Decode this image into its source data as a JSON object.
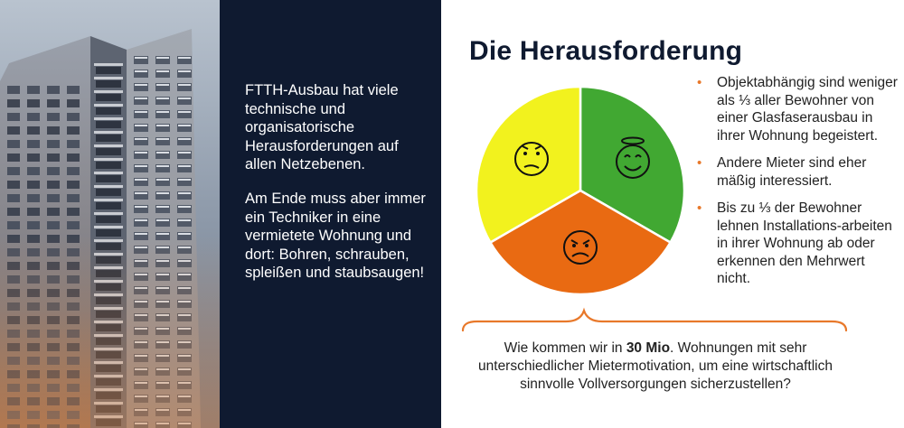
{
  "colors": {
    "navy": "#0f1a30",
    "yellow": "#f2f21e",
    "green": "#41a832",
    "orange": "#e96a12",
    "accent": "#e8782a"
  },
  "left_panel": {
    "paragraph1": "FTTH-Ausbau hat viele technische und organisatorische Herausforderungen auf allen Netzebenen.",
    "paragraph2": "Am Ende muss aber immer ein Techniker in eine vermietete Wohnung und dort: Bohren, schrauben, spleißen und staubsaugen!"
  },
  "title": "Die Herausforderung",
  "pie": {
    "segments": [
      {
        "label": "yellow",
        "icon": "confused-face-icon",
        "fraction": 0.3333
      },
      {
        "label": "green",
        "icon": "happy-angel-face-icon",
        "fraction": 0.3333
      },
      {
        "label": "orange",
        "icon": "angry-face-icon",
        "fraction": 0.3333
      }
    ]
  },
  "bullets": [
    "Objektabhängig sind weniger als ⅓ aller Bewohner von einer Glasfaserausbau in ihrer Wohnung begeistert.",
    "Andere Mieter sind eher mäßig interessiert.",
    "Bis zu ⅓ der Bewohner lehnen Installations-arbeiten in ihrer Wohnung ab oder erkennen den Mehrwert nicht."
  ],
  "question": {
    "before": "Wie kommen wir in ",
    "bold": "30 Mio",
    "after": ". Wohnungen mit sehr unterschiedlicher Mietermotivation, um eine wirtschaftlich sinnvolle Vollversorgungen sicherzustellen?"
  }
}
